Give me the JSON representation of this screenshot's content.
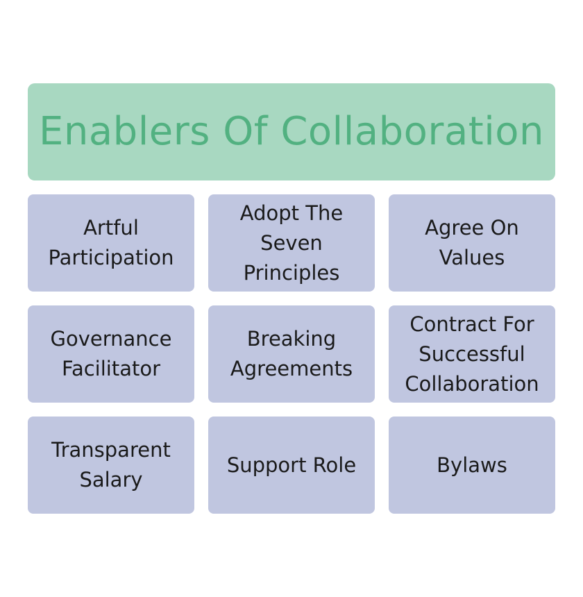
{
  "colors": {
    "title_bg": "#a8d8c1",
    "title_text": "#52b181",
    "card_bg": "#c0c6e0",
    "card_text": "#1a1a1a"
  },
  "title": "Enablers Of Collaboration",
  "items": [
    {
      "label": "Artful\nParticipation"
    },
    {
      "label": "Adopt The\nSeven\nPrinciples"
    },
    {
      "label": "Agree On\nValues"
    },
    {
      "label": "Governance\nFacilitator"
    },
    {
      "label": "Breaking\nAgreements"
    },
    {
      "label": "Contract For\nSuccessful\nCollaboration"
    },
    {
      "label": "Transparent\nSalary"
    },
    {
      "label": "Support Role"
    },
    {
      "label": "Bylaws"
    }
  ]
}
